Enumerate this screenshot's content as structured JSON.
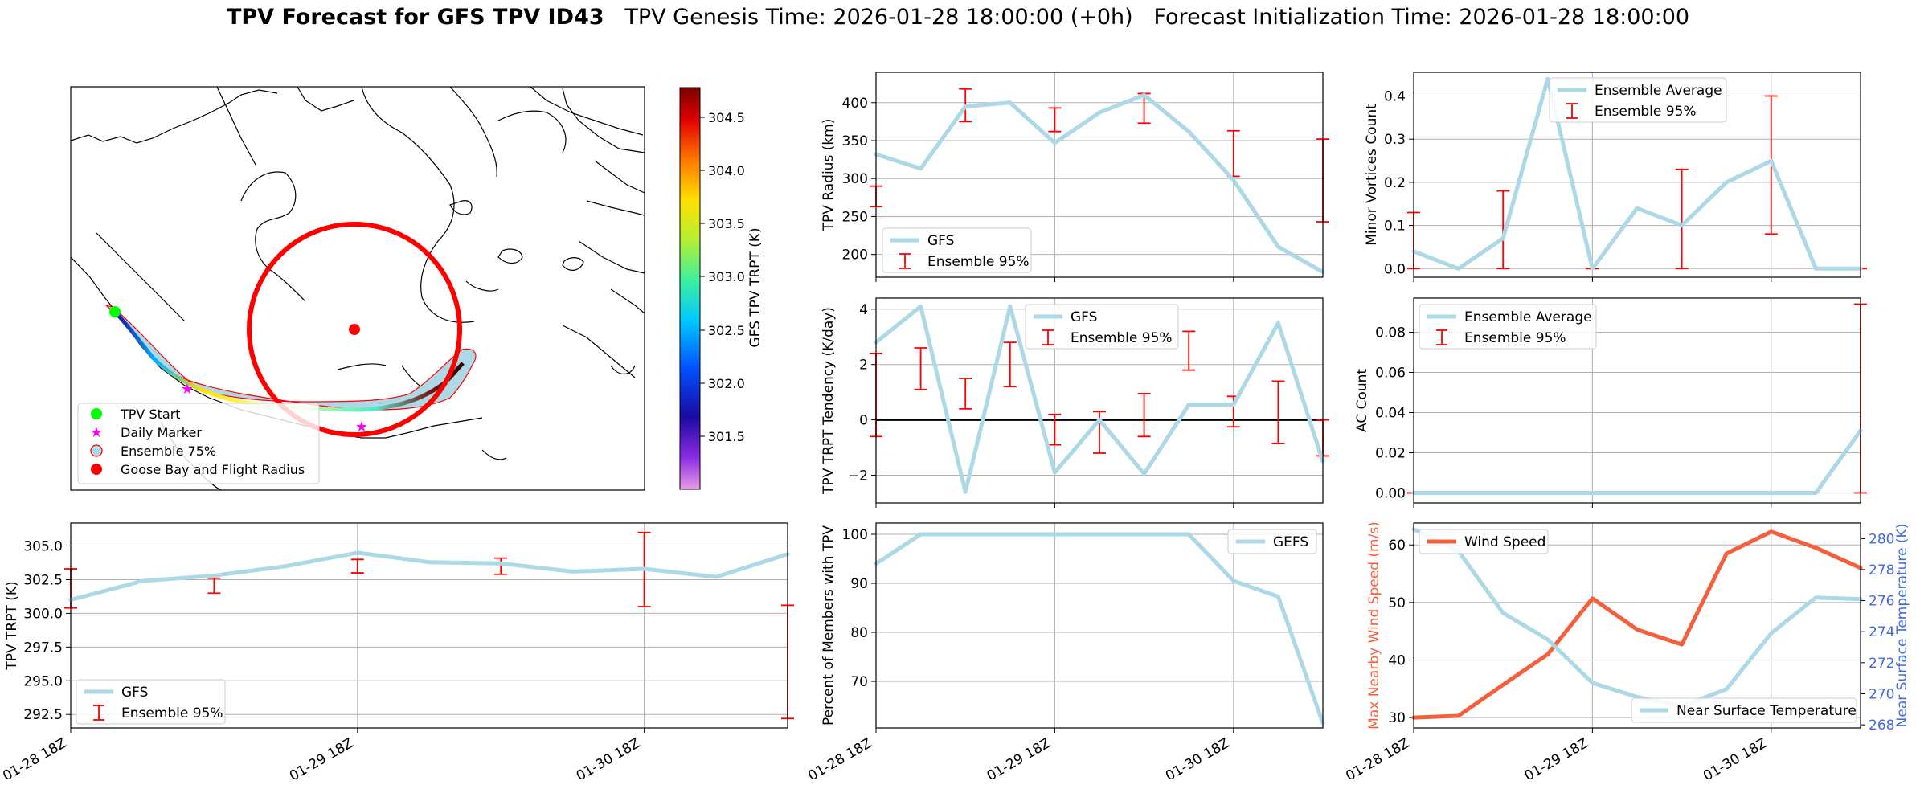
{
  "header": {
    "title_bold": "TPV Forecast for GFS TPV ID43",
    "genesis": "TPV Genesis Time: 2026-01-28 18:00:00 (+0h)",
    "init": "Forecast Initialization Time: 2026-01-28 18:00:00"
  },
  "colors": {
    "series": "#add8e6",
    "ensemble": "#ff0000",
    "wind": "#f4603e",
    "temp_axis": "#4169e1",
    "start": "#00ff00",
    "marker": "#ff00ff",
    "goose": "#ff0000"
  },
  "time_ticks": [
    "01-28 18Z",
    "01-29 18Z",
    "01-30 18Z"
  ],
  "map": {
    "legend": [
      "TPV Start",
      "Daily Marker",
      "Ensemble 75%",
      "Goose Bay and Flight Radius"
    ],
    "colorbar": {
      "label": "GFS TPV TRPT (K)",
      "ticks": [
        "304.5",
        "304.0",
        "303.5",
        "303.0",
        "302.5",
        "302.0",
        "301.5"
      ]
    }
  },
  "chart_data": [
    {
      "id": "radius",
      "type": "line",
      "ylabel": "TPV Radius (km)",
      "ylim": [
        170,
        440
      ],
      "yticks": [
        200,
        250,
        300,
        350,
        400
      ],
      "ytick_labels": [
        "200",
        "250",
        "300",
        "350",
        "400"
      ],
      "legend": [
        "GFS",
        "Ensemble 95%"
      ],
      "x": [
        0,
        0.25,
        0.5,
        0.75,
        1,
        1.25,
        1.5,
        1.75,
        2,
        2.25,
        2.5
      ],
      "series": [
        {
          "name": "GFS",
          "values": [
            332,
            313,
            395,
            400,
            347,
            387,
            410,
            362,
            298,
            210,
            177
          ]
        }
      ],
      "ensemble": [
        [
          0,
          263,
          290
        ],
        [
          0.5,
          375,
          418
        ],
        [
          1,
          362,
          393
        ],
        [
          1.5,
          373,
          412
        ],
        [
          2,
          303,
          363
        ],
        [
          2.5,
          243,
          352
        ]
      ]
    },
    {
      "id": "minor",
      "type": "line",
      "ylabel": "Minor Vortices Count",
      "ylim": [
        -0.02,
        0.455
      ],
      "yticks": [
        0,
        0.1,
        0.2,
        0.3,
        0.4
      ],
      "ytick_labels": [
        "0.0",
        "0.1",
        "0.2",
        "0.3",
        "0.4"
      ],
      "legend": [
        "Ensemble Average",
        "Ensemble 95%"
      ],
      "x": [
        0,
        0.25,
        0.5,
        0.75,
        1,
        1.25,
        1.5,
        1.75,
        2,
        2.25,
        2.5
      ],
      "series": [
        {
          "name": "Ensemble Average",
          "values": [
            0.04,
            0.0,
            0.07,
            0.44,
            0.0,
            0.14,
            0.1,
            0.2,
            0.25,
            0.0,
            0.0
          ]
        }
      ],
      "ensemble": [
        [
          0,
          0,
          0.13
        ],
        [
          0.5,
          0,
          0.18
        ],
        [
          1,
          0,
          0
        ],
        [
          1.5,
          0,
          0.23
        ],
        [
          2,
          0.08,
          0.4
        ],
        [
          2.5,
          0,
          0
        ]
      ]
    },
    {
      "id": "tendency",
      "type": "line",
      "ylabel": "TPV TRPT Tendency (K/day)",
      "ylim": [
        -3,
        4.4
      ],
      "yticks": [
        -2,
        0,
        2,
        4
      ],
      "ytick_labels": [
        "−2",
        "0",
        "2",
        "4"
      ],
      "legend": [
        "GFS",
        "Ensemble 95%"
      ],
      "x": [
        0,
        0.25,
        0.5,
        0.75,
        1,
        1.25,
        1.5,
        1.75,
        2,
        2.25,
        2.5
      ],
      "series": [
        {
          "name": "GFS",
          "values": [
            2.8,
            4.1,
            -2.6,
            4.1,
            -1.9,
            0.0,
            -1.95,
            0.55,
            0.55,
            3.5,
            -1.5
          ]
        }
      ],
      "ensemble": [
        [
          0,
          -0.6,
          2.4
        ],
        [
          0.25,
          1.1,
          2.6
        ],
        [
          0.5,
          0.4,
          1.5
        ],
        [
          0.75,
          1.2,
          2.8
        ],
        [
          1,
          -0.9,
          0.2
        ],
        [
          1.25,
          -1.2,
          0.3
        ],
        [
          1.5,
          -0.6,
          0.95
        ],
        [
          1.75,
          1.8,
          3.2
        ],
        [
          2,
          -0.25,
          0.85
        ],
        [
          2.25,
          -0.85,
          1.4
        ],
        [
          2.5,
          -1.3,
          0.0
        ]
      ]
    },
    {
      "id": "ac",
      "type": "line",
      "ylabel": "AC Count",
      "ylim": [
        -0.005,
        0.097
      ],
      "yticks": [
        0,
        0.02,
        0.04,
        0.06,
        0.08
      ],
      "ytick_labels": [
        "0.00",
        "0.02",
        "0.04",
        "0.06",
        "0.08"
      ],
      "legend": [
        "Ensemble Average",
        "Ensemble 95%"
      ],
      "x": [
        0,
        0.25,
        0.5,
        0.75,
        1,
        1.25,
        1.5,
        1.75,
        2,
        2.25,
        2.5
      ],
      "series": [
        {
          "name": "Ensemble Average",
          "values": [
            0,
            0,
            0,
            0,
            0,
            0,
            0,
            0,
            0,
            0,
            0.031
          ]
        }
      ],
      "ensemble": [
        [
          0,
          0,
          0
        ],
        [
          0.5,
          0,
          0
        ],
        [
          1,
          0,
          0
        ],
        [
          1.5,
          0,
          0
        ],
        [
          2,
          0,
          0
        ],
        [
          2.5,
          0,
          0.094
        ]
      ]
    },
    {
      "id": "trpt",
      "type": "line",
      "ylabel": "TPV TRPT (K)",
      "ylim": [
        291.5,
        306.7
      ],
      "yticks": [
        292.5,
        295,
        297.5,
        300,
        302.5,
        305
      ],
      "ytick_labels": [
        "292.5",
        "295.0",
        "297.5",
        "300.0",
        "302.5",
        "305.0"
      ],
      "legend": [
        "GFS",
        "Ensemble 95%"
      ],
      "x": [
        0,
        0.25,
        0.5,
        0.75,
        1,
        1.25,
        1.5,
        1.75,
        2,
        2.25,
        2.5
      ],
      "series": [
        {
          "name": "GFS",
          "values": [
            301.0,
            302.4,
            302.8,
            303.5,
            304.5,
            303.8,
            303.7,
            303.1,
            303.3,
            302.7,
            304.4
          ]
        }
      ],
      "ensemble": [
        [
          0,
          300.4,
          303.3
        ],
        [
          0.5,
          301.5,
          302.6
        ],
        [
          1,
          303.0,
          304.0
        ],
        [
          1.5,
          302.9,
          304.1
        ],
        [
          2,
          300.5,
          306.0
        ],
        [
          2.5,
          292.2,
          300.6
        ]
      ]
    },
    {
      "id": "members",
      "type": "line",
      "ylabel": "Percent of Members with TPV",
      "ylim": [
        60.5,
        102.3
      ],
      "yticks": [
        70,
        80,
        90,
        100
      ],
      "ytick_labels": [
        "70",
        "80",
        "90",
        "100"
      ],
      "legend": [
        "GEFS"
      ],
      "x": [
        0,
        0.25,
        0.5,
        0.75,
        1,
        1.25,
        1.5,
        1.75,
        2,
        2.25,
        2.5
      ],
      "series": [
        {
          "name": "GEFS",
          "values": [
            94,
            100,
            100,
            100,
            100,
            100,
            100,
            100,
            90.5,
            87.3,
            61.5
          ]
        }
      ]
    },
    {
      "id": "wind",
      "type": "line",
      "ylabel": "Max Nearby Wind Speed (m/s)",
      "ylim": [
        28.2,
        63.8
      ],
      "yticks": [
        30,
        40,
        50,
        60
      ],
      "ytick_labels": [
        "30",
        "40",
        "50",
        "60"
      ],
      "y2label": "Near Surface Temperature (K)",
      "y2lim": [
        267.8,
        281.0
      ],
      "y2ticks": [
        268,
        270,
        272,
        274,
        276,
        278,
        280
      ],
      "y2tick_labels": [
        "268",
        "270",
        "272",
        "274",
        "276",
        "278",
        "280"
      ],
      "legend": [
        "Wind Speed",
        "Near Surface Temperature"
      ],
      "x": [
        0,
        0.25,
        0.5,
        0.75,
        1,
        1.25,
        1.5,
        1.75,
        2,
        2.25,
        2.5
      ],
      "series": [
        {
          "name": "Wind Speed",
          "axis": "left",
          "values": [
            30.0,
            30.3,
            35.7,
            41.0,
            50.7,
            45.3,
            42.7,
            58.5,
            62.3,
            59.5,
            56.0
          ]
        },
        {
          "name": "Near Surface Temperature",
          "axis": "right",
          "values": [
            280.6,
            279.2,
            275.2,
            273.5,
            270.7,
            269.8,
            269.2,
            270.3,
            273.9,
            276.2,
            276.1
          ]
        }
      ]
    }
  ]
}
